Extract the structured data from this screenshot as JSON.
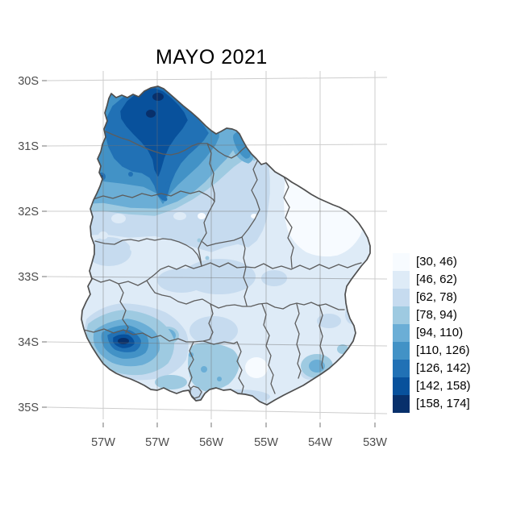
{
  "title": "MAYO 2021",
  "axes": {
    "x": {
      "tick_labels": [
        "57W",
        "57W",
        "56W",
        "55W",
        "54W",
        "53W"
      ]
    },
    "y": {
      "tick_labels": [
        "30S",
        "31S",
        "32S",
        "33S",
        "34S",
        "35S"
      ]
    }
  },
  "legend": {
    "bins": [
      {
        "label": "[30, 46)",
        "color": "#f7fbff"
      },
      {
        "label": "[46, 62)",
        "color": "#deebf7"
      },
      {
        "label": "[62, 78)",
        "color": "#c6dbef"
      },
      {
        "label": "[78, 94)",
        "color": "#9ecae1"
      },
      {
        "label": "[94, 110)",
        "color": "#6baed6"
      },
      {
        "label": "[110, 126)",
        "color": "#4292c6"
      },
      {
        "label": "[126, 142)",
        "color": "#2171b5"
      },
      {
        "label": "[142, 158)",
        "color": "#08519c"
      },
      {
        "label": "[158, 174]",
        "color": "#08306b"
      }
    ]
  },
  "colors": {
    "background": "#ffffff",
    "grid": "#cdcdcd",
    "grid_over_map": "#707070",
    "department_boundary": "#5d5d5d",
    "country_outline": "#4f4f4f",
    "axis_text": "#4d4d4d",
    "tick": "#8a8a8a",
    "title_text": "#000000",
    "legend_text": "#000000"
  },
  "chart_data": {
    "type": "choropleth_map",
    "title": "MAYO 2021",
    "x_ticks": [
      "57W",
      "57W",
      "56W",
      "55W",
      "54W",
      "53W"
    ],
    "y_ticks": [
      "30S",
      "31S",
      "32S",
      "33S",
      "34S",
      "35S"
    ],
    "legend_bins": [
      "[30, 46)",
      "[46, 62)",
      "[62, 78)",
      "[78, 94)",
      "[94, 110)",
      "[110, 126)",
      "[126, 142)",
      "[142, 158)",
      "[158, 174]"
    ],
    "palette": [
      "#f7fbff",
      "#deebf7",
      "#c6dbef",
      "#9ecae1",
      "#6baed6",
      "#4292c6",
      "#2171b5",
      "#08519c",
      "#08306b"
    ],
    "legend_position": "right",
    "grid": true,
    "regions_depicted": [
      {
        "area": "north",
        "bin": "[126, 174]"
      },
      {
        "area": "north interior spots",
        "bin": "[158, 174]"
      },
      {
        "area": "southwest bullseye",
        "bin": "[110, 174]"
      },
      {
        "area": "center and east",
        "bin": "[30, 78)"
      },
      {
        "area": "south-central coast",
        "bin": "[78, 110)"
      },
      {
        "area": "southeast coastal spot",
        "bin": "[94, 110)"
      }
    ]
  }
}
